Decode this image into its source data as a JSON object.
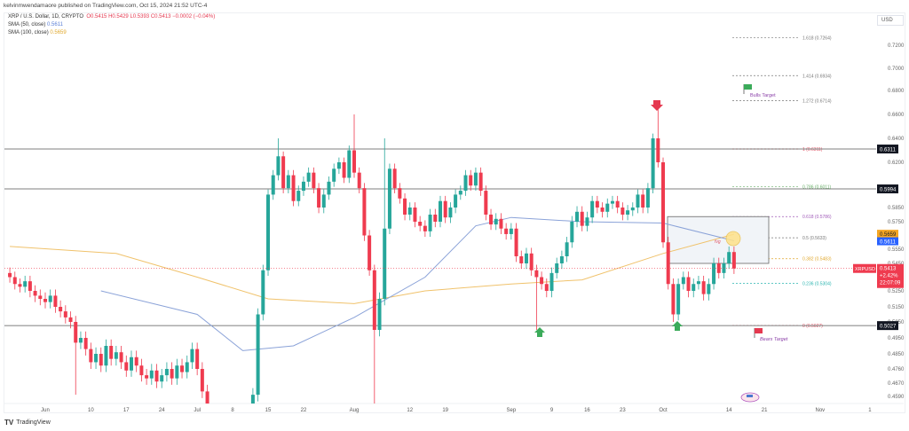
{
  "header": {
    "published": "kelvinmwendamaore published on TradingView.com, Oct 15, 2024 21:52 UTC-4"
  },
  "legend": {
    "symbol": "XRP / U.S. Dollar, 1D, CRYPTO",
    "o": "O0.5415",
    "h": "H0.5429",
    "l": "L0.5393",
    "c": "C0.5413",
    "chg": "−0.0002 (−0.04%)",
    "sma50_label": "SMA (50, close)",
    "sma50_value": "0.5611",
    "sma100_label": "SMA (100, close)",
    "sma100_value": "0.5659"
  },
  "currency": "USD",
  "footer": {
    "brand": "TradingView"
  },
  "colors": {
    "up": "#26a69a",
    "down": "#ef3b4f",
    "sma50": "#8aa2d8",
    "sma100": "#f0c26b"
  },
  "chart_data": {
    "type": "candlestick",
    "y_scale": "log",
    "y_ticks": [
      "0.7200",
      "0.7000",
      "0.6800",
      "0.6600",
      "0.6400",
      "0.6200",
      "0.5850",
      "0.5750",
      "0.5550",
      "0.5450",
      "0.5250",
      "0.5150",
      "0.5050",
      "0.4950",
      "0.4850",
      "0.4760",
      "0.4670",
      "0.4590"
    ],
    "x_ticks": [
      [
        "Jun",
        "2024-06-01"
      ],
      [
        "10",
        "2024-06-10"
      ],
      [
        "17",
        "2024-06-17"
      ],
      [
        "24",
        "2024-06-24"
      ],
      [
        "Jul",
        "2024-07-01"
      ],
      [
        "8",
        "2024-07-08"
      ],
      [
        "15",
        "2024-07-15"
      ],
      [
        "22",
        "2024-07-22"
      ],
      [
        "Aug",
        "2024-08-01"
      ],
      [
        "12",
        "2024-08-12"
      ],
      [
        "19",
        "2024-08-19"
      ],
      [
        "Sep",
        "2024-09-01"
      ],
      [
        "9",
        "2024-09-09"
      ],
      [
        "16",
        "2024-09-16"
      ],
      [
        "23",
        "2024-09-23"
      ],
      [
        "Oct",
        "2024-10-01"
      ],
      [
        "14",
        "2024-10-14"
      ],
      [
        "21",
        "2024-10-21"
      ],
      [
        "Nov",
        "2024-11-01"
      ],
      [
        "1",
        "2024-11-01"
      ]
    ],
    "closes": [
      [
        "2024-05-25",
        [
          0.535,
          0.53,
          0.528,
          0.532,
          0.525,
          0.522,
          0.52,
          0.518,
          0.522,
          0.515,
          0.512,
          0.508,
          0.505,
          0.492,
          0.495,
          0.488,
          0.48,
          0.485,
          0.478,
          0.49,
          0.482,
          0.486,
          0.48,
          0.475,
          0.483,
          0.478,
          0.472,
          0.47,
          0.475,
          0.468,
          0.472,
          0.476,
          0.47,
          0.478,
          0.474,
          0.48,
          0.488,
          0.476,
          0.462,
          0.45,
          0.43,
          0.42,
          0.425,
          0.43,
          0.428,
          0.432,
          0.44,
          0.445,
          0.46,
          0.51,
          0.54,
          0.595,
          0.61,
          0.625,
          0.6,
          0.61,
          0.59,
          0.598,
          0.605,
          0.612,
          0.6,
          0.585,
          0.595,
          0.605,
          0.615,
          0.62,
          0.608,
          0.63,
          0.612,
          0.6,
          0.565,
          0.54,
          0.5,
          0.52,
          0.57,
          0.615,
          0.6,
          0.592,
          0.58,
          0.585,
          0.575,
          0.572,
          0.568,
          0.58,
          0.575,
          0.59,
          0.578,
          0.585,
          0.595,
          0.598,
          0.61,
          0.602,
          0.612,
          0.598,
          0.58,
          0.573,
          0.577,
          0.57,
          0.566,
          0.57,
          0.55,
          0.545,
          0.552,
          0.54,
          0.535,
          0.53,
          0.525,
          0.538,
          0.545,
          0.55,
          0.56,
          0.575,
          0.582,
          0.572,
          0.578,
          0.59,
          0.585,
          0.582,
          0.588,
          0.59,
          0.585,
          0.58,
          0.583,
          0.585,
          0.595,
          0.585,
          0.6,
          0.64,
          0.62,
          0.56,
          0.53,
          0.51,
          0.53,
          0.535,
          0.525,
          0.53,
          0.532,
          0.523,
          0.53,
          0.545,
          0.538,
          0.545,
          0.553,
          0.5413
        ]
      ]
    ],
    "wick_extremes": [
      [
        "2024-06-07",
        "low",
        0.46
      ],
      [
        "2024-07-17",
        "high",
        0.64
      ],
      [
        "2024-08-01",
        "high",
        0.66
      ],
      [
        "2024-08-05",
        "low",
        0.43
      ],
      [
        "2024-08-07",
        "high",
        0.64
      ],
      [
        "2024-09-06",
        "low",
        0.5
      ],
      [
        "2024-09-30",
        "high",
        0.665
      ],
      [
        "2024-10-03",
        "low",
        0.505
      ]
    ],
    "sma50": [
      [
        "2024-06-12",
        0.525
      ],
      [
        "2024-07-01",
        0.51
      ],
      [
        "2024-07-10",
        0.487
      ],
      [
        "2024-07-20",
        0.49
      ],
      [
        "2024-08-01",
        0.508
      ],
      [
        "2024-08-15",
        0.535
      ],
      [
        "2024-08-25",
        0.572
      ],
      [
        "2024-09-01",
        0.578
      ],
      [
        "2024-09-15",
        0.575
      ],
      [
        "2024-10-01",
        0.574
      ],
      [
        "2024-10-15",
        0.5611
      ]
    ],
    "sma100": [
      [
        "2024-05-25",
        0.557
      ],
      [
        "2024-06-15",
        0.552
      ],
      [
        "2024-07-01",
        0.535
      ],
      [
        "2024-07-15",
        0.52
      ],
      [
        "2024-08-01",
        0.517
      ],
      [
        "2024-08-15",
        0.525
      ],
      [
        "2024-09-01",
        0.53
      ],
      [
        "2024-09-15",
        0.533
      ],
      [
        "2024-10-01",
        0.552
      ],
      [
        "2024-10-15",
        0.5659
      ]
    ],
    "horizontal_levels": [
      {
        "price": 0.6311,
        "label": "0.6311"
      },
      {
        "price": 0.5994,
        "label": "0.5994"
      },
      {
        "price": 0.5027,
        "label": "0.5027"
      }
    ],
    "fib_levels": [
      {
        "price": 0.7264,
        "label": "1.618 (0.7264)",
        "color": "#777777"
      },
      {
        "price": 0.6934,
        "label": "1.414 (0.6934)",
        "color": "#777777"
      },
      {
        "price": 0.6714,
        "label": "1.272 (0.6714)",
        "color": "#777777"
      },
      {
        "price": 0.6311,
        "label": "1 (0.6311)",
        "color": "#e05a6a"
      },
      {
        "price": 0.6011,
        "label": "0.786 (0.6011)",
        "color": "#6ab06a"
      },
      {
        "price": 0.5786,
        "label": "0.618 (0.5786)",
        "color": "#a05ab8"
      },
      {
        "price": 0.5633,
        "label": "0.5 (0.5633)",
        "color": "#777777"
      },
      {
        "price": 0.5483,
        "label": "0.382 (0.5483)",
        "color": "#e0a82e"
      },
      {
        "price": 0.5304,
        "label": "0.236 (0.5304)",
        "color": "#2bb5b0"
      },
      {
        "price": 0.5027,
        "label": "0 (0.5027)",
        "color": "#e05a6a"
      }
    ],
    "annotations": {
      "bulls_target": "Bulls Target",
      "bears_target": "Bears Target",
      "fvg": "fvg"
    },
    "last_price": {
      "symbol": "XRPUSD",
      "price": "0.5413",
      "change": "+2.42%",
      "countdown": "22:07:09"
    },
    "sma_tags": {
      "sma100": "0.5659",
      "sma50": "0.5611"
    }
  }
}
